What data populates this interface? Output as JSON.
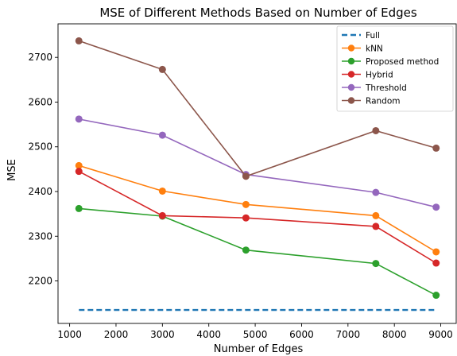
{
  "chart_data": {
    "type": "line",
    "title": "MSE of Different Methods Based on Number of Edges",
    "xlabel": "Number of Edges",
    "ylabel": "MSE",
    "xlim": [
      750,
      9350
    ],
    "ylim": [
      2105,
      2775
    ],
    "xticks": [
      1000,
      2000,
      3000,
      4000,
      5000,
      6000,
      7000,
      8000,
      9000
    ],
    "yticks": [
      2200,
      2300,
      2400,
      2500,
      2600,
      2700
    ],
    "grid": false,
    "legend": "top-right",
    "x": [
      1200,
      3000,
      4800,
      7600,
      8900
    ],
    "series": [
      {
        "name": "Full",
        "style": "dashed",
        "color": "#1f77b4",
        "values": [
          2135,
          2135,
          2135,
          2135,
          2135
        ]
      },
      {
        "name": "kNN",
        "style": "solid-marker",
        "color": "#ff7f0e",
        "values": [
          2458,
          2401,
          2371,
          2346,
          2265
        ]
      },
      {
        "name": "Proposed method",
        "style": "solid-marker",
        "color": "#2ca02c",
        "values": [
          2362,
          2345,
          2269,
          2239,
          2168
        ]
      },
      {
        "name": "Hybrid",
        "style": "solid-marker",
        "color": "#d62728",
        "values": [
          2445,
          2346,
          2341,
          2322,
          2240
        ]
      },
      {
        "name": "Threshold",
        "style": "solid-marker",
        "color": "#9467bd",
        "values": [
          2562,
          2526,
          2438,
          2398,
          2365
        ]
      },
      {
        "name": "Random",
        "style": "solid-marker",
        "color": "#8c564b",
        "values": [
          2737,
          2673,
          2434,
          2536,
          2497
        ]
      }
    ]
  }
}
